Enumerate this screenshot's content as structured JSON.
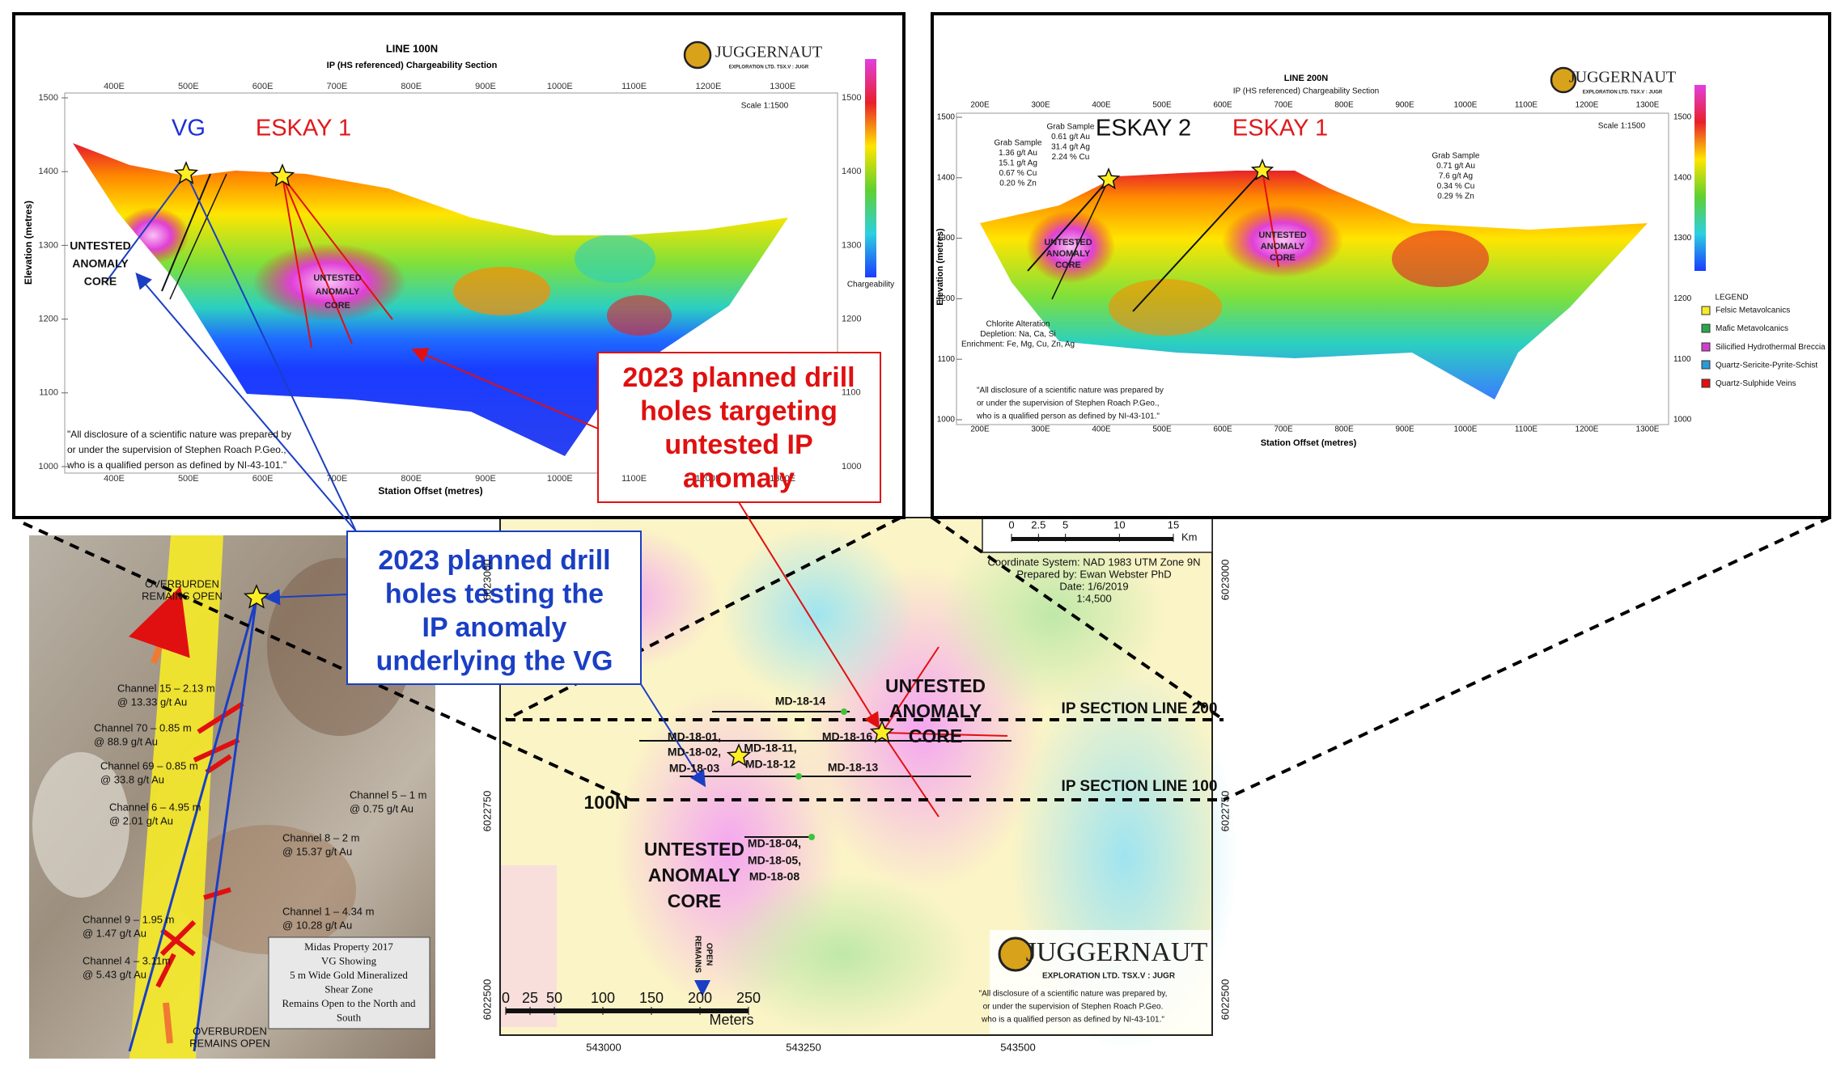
{
  "section_100": {
    "title": "LINE 100N",
    "subtitle": "IP (HS referenced) Chargeability Section",
    "scale": "Scale 1:1500",
    "vg": "VG",
    "eskay_1": "ESKAY 1",
    "anomaly_left": [
      "UNTESTED",
      "ANOMALY",
      "CORE"
    ],
    "anomaly_center": [
      "UNTESTED",
      "ANOMALY",
      "CORE"
    ],
    "x_axis_title": "Station Offset (metres)",
    "y_axis_title": "Elevation (metres)",
    "colorbar_title": "Chargeability",
    "x_ticks": [
      "400E",
      "500E",
      "600E",
      "700E",
      "800E",
      "900E",
      "1000E",
      "1100E",
      "1200E",
      "1300E"
    ],
    "y_ticks": [
      1500,
      1400,
      1300,
      1200,
      1100,
      1000
    ],
    "disclosure": [
      "\"All disclosure of a scientific nature was prepared by",
      "or under the supervision of Stephen Roach P.Geo.,",
      "who is a qualified person as defined by NI-43-101.\""
    ]
  },
  "section_200": {
    "title": "LINE 200N",
    "subtitle": "IP (HS referenced) Chargeability Section",
    "scale": "Scale 1:1500",
    "eskay_2": "ESKAY 2",
    "eskay_1": "ESKAY 1",
    "grab_samples": [
      [
        "Grab Sample",
        "1.36 g/t Au",
        "15.1 g/t Ag",
        "0.67 % Cu",
        "0.20 % Zn"
      ],
      [
        "Grab Sample",
        "0.61 g/t Au",
        "31.4 g/t Ag",
        "2.24 % Cu"
      ],
      [
        "Grab Sample",
        "0.71 g/t Au",
        "7.6 g/t Ag",
        "0.34 % Cu",
        "0.29 % Zn"
      ]
    ],
    "alteration": [
      "Chlorite Alteration",
      "Depletion: Na, Ca, Si",
      "Enrichment: Fe, Mg, Cu, Zn, Ag"
    ],
    "anomaly_left": [
      "UNTESTED",
      "ANOMALY",
      "CORE"
    ],
    "anomaly_right": [
      "UNTESTED",
      "ANOMALY",
      "CORE"
    ],
    "x_axis_title": "Station Offset (metres)",
    "y_axis_title": "Elevation (metres)",
    "x_ticks": [
      "200E",
      "300E",
      "400E",
      "500E",
      "600E",
      "700E",
      "800E",
      "900E",
      "1000E",
      "1100E",
      "1200E",
      "1300E"
    ],
    "y_ticks": [
      1500,
      1400,
      1300,
      1200,
      1100,
      1000
    ],
    "legend": {
      "title": "LEGEND",
      "items": [
        "Felsic Metavolcanics",
        "Mafic Metavolcanics",
        "Silicified Hydrothermal Breccia",
        "Quartz-Sericite-Pyrite-Schist",
        "Quartz-Sulphide Veins"
      ]
    },
    "disclosure": [
      "\"All disclosure of a scientific nature was prepared by",
      "or under the supervision of Stephen Roach P.Geo.,",
      "who is a qualified person as defined by NI-43-101.\""
    ]
  },
  "logo": {
    "name": "JUGGERNAUT",
    "tagline": "EXPLORATION LTD. TSX.V : JUGR"
  },
  "callouts": {
    "testing_vg": [
      "2023 planned drill",
      "holes testing the",
      "IP anomaly",
      "underlying the VG"
    ],
    "targeting_anomaly": [
      "2023 planned drill",
      "holes targeting",
      "untested IP",
      "anomaly"
    ]
  },
  "showing": {
    "overburden_top": [
      "OVERBURDEN",
      "REMAINS OPEN"
    ],
    "overburden_bottom": [
      "OVERBURDEN",
      "REMAINS OPEN"
    ],
    "channels": [
      [
        "Channel 15 – 2.13 m",
        "@ 13.33 g/t Au"
      ],
      [
        "Channel 70 – 0.85 m",
        "@ 88.9 g/t Au"
      ],
      [
        "Channel 69 – 0.85 m",
        "@ 33.8 g/t Au"
      ],
      [
        "Channel 6 – 4.95 m",
        "@ 2.01 g/t Au"
      ],
      [
        "Channel 5 – 1 m",
        "@ 0.75 g/t Au"
      ],
      [
        "Channel 8 – 2 m",
        "@ 15.37 g/t Au"
      ],
      [
        "Channel 1 – 4.34 m",
        "@ 10.28 g/t Au"
      ],
      [
        "Channel 9 – 1.95 m",
        "@ 1.47 g/t Au"
      ],
      [
        "Channel 4 – 3.11m",
        "@ 5.43 g/t Au"
      ]
    ],
    "caption": [
      "Midas Property 2017",
      "VG Showing",
      "5 m Wide Gold Mineralized",
      "Shear Zone",
      "Remains Open to the North and",
      "South"
    ]
  },
  "map": {
    "anomaly_upper": [
      "UNTESTED",
      "ANOMALY",
      "CORE"
    ],
    "anomaly_lower": [
      "UNTESTED",
      "ANOMALY",
      "CORE"
    ],
    "section_line_200": "IP SECTION LINE 200",
    "section_line_100": "IP SECTION LINE 100",
    "line_label": "100N",
    "drill_labels": [
      "MD-18-14",
      "MD-18-16",
      "MD-18-01,",
      "MD-18-02,",
      "MD-18-03",
      "MD-18-11,",
      "MD-18-12",
      "MD-18-13",
      "MD-18-04,",
      "MD-18-05,",
      "MD-18-08"
    ],
    "remains_open": [
      "REMAINS",
      "OPEN"
    ],
    "scale_bar": [
      0,
      25,
      50,
      100,
      150,
      200,
      250
    ],
    "scale_unit": "Meters",
    "km_scale": [
      0,
      2.5,
      5,
      10,
      15
    ],
    "km_unit": "Km",
    "coordinate_info": [
      "Coordinate System: NAD 1983 UTM Zone 9N",
      "Prepared by: Ewan Webster PhD",
      "Date: 1/6/2019",
      "1:4,500"
    ],
    "eastings": [
      543000,
      543250,
      543500
    ],
    "northings": [
      6023000,
      6022750,
      6022500
    ],
    "disclosure": [
      "\"All disclosure of a scientific nature was prepared by,",
      "or under the supervision of Stephen Roach P.Geo.",
      "who is a qualified person as defined by NI-43-101.\""
    ]
  }
}
